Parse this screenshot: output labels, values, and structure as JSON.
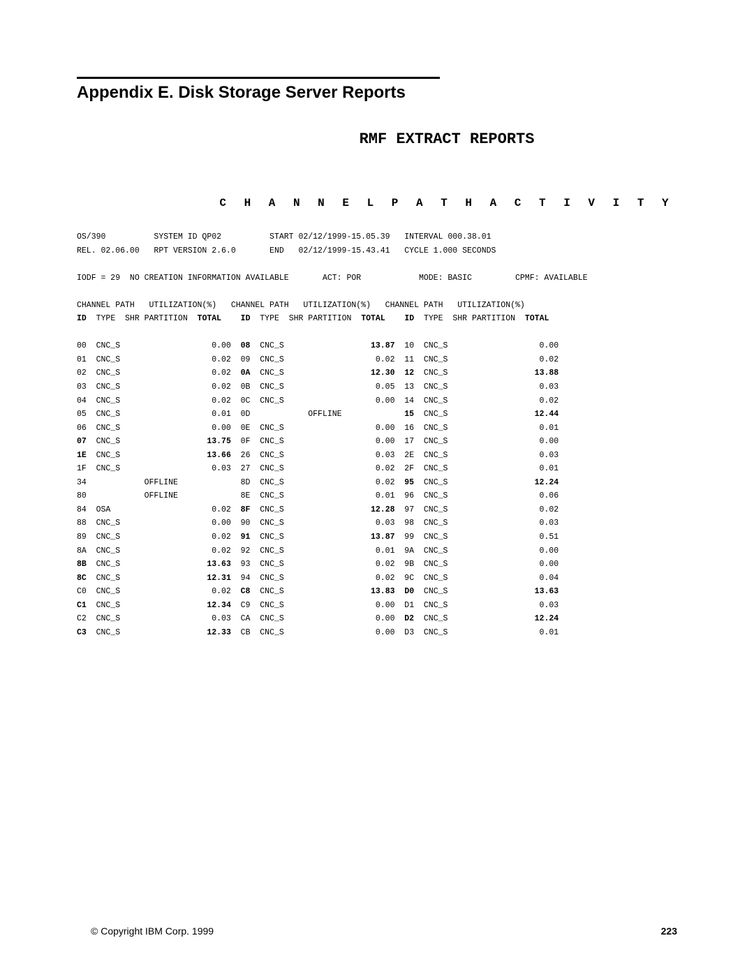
{
  "header": {
    "appendix_title": "Appendix E.  Disk Storage Server Reports",
    "report_title": "RMF EXTRACT REPORTS",
    "section_title": "C H A N N E L   P A T H   A C T I V I T Y"
  },
  "sysinfo": {
    "os_label": "OS/390",
    "system_id_label": "SYSTEM ID",
    "system_id": "QP02",
    "start_label": "START",
    "start": "02/12/1999-15.05.39",
    "interval_label": "INTERVAL",
    "interval": "000.38.01",
    "rel_label": "REL.",
    "rel": "02.06.00",
    "rpt_version_label": "RPT VERSION",
    "rpt_version": "2.6.0",
    "end_label": "END",
    "end": "02/12/1999-15.43.41",
    "cycle_label": "CYCLE",
    "cycle": "1.000 SECONDS",
    "iodf_label": "IODF =",
    "iodf": "29",
    "creation_info": "NO CREATION INFORMATION AVAILABLE",
    "act_label": "ACT:",
    "act": "POR",
    "mode_label": "MODE:",
    "mode": "BASIC",
    "cpmf_label": "CPMF:",
    "cpmf": "AVAILABLE"
  },
  "columns": {
    "group_label": "CHANNEL PATH",
    "util_label": "UTILIZATION(%)",
    "id": "ID",
    "type": "TYPE",
    "shr": "SHR",
    "partition": "PARTITION",
    "total": "TOTAL"
  },
  "rows": [
    {
      "c1": {
        "id": "00",
        "type": "CNC_S",
        "part": "",
        "total": "0.00",
        "bold": false
      },
      "c2": {
        "id": "08",
        "type": "CNC_S",
        "part": "",
        "total": "13.87",
        "bold": true
      },
      "c3": {
        "id": "10",
        "type": "CNC_S",
        "part": "",
        "total": "0.00",
        "bold": false
      }
    },
    {
      "c1": {
        "id": "01",
        "type": "CNC_S",
        "part": "",
        "total": "0.02",
        "bold": false
      },
      "c2": {
        "id": "09",
        "type": "CNC_S",
        "part": "",
        "total": "0.02",
        "bold": false
      },
      "c3": {
        "id": "11",
        "type": "CNC_S",
        "part": "",
        "total": "0.02",
        "bold": false
      }
    },
    {
      "c1": {
        "id": "02",
        "type": "CNC_S",
        "part": "",
        "total": "0.02",
        "bold": false
      },
      "c2": {
        "id": "0A",
        "type": "CNC_S",
        "part": "",
        "total": "12.30",
        "bold": true
      },
      "c3": {
        "id": "12",
        "type": "CNC_S",
        "part": "",
        "total": "13.88",
        "bold": true
      }
    },
    {
      "c1": {
        "id": "03",
        "type": "CNC_S",
        "part": "",
        "total": "0.02",
        "bold": false
      },
      "c2": {
        "id": "0B",
        "type": "CNC_S",
        "part": "",
        "total": "0.05",
        "bold": false
      },
      "c3": {
        "id": "13",
        "type": "CNC_S",
        "part": "",
        "total": "0.03",
        "bold": false
      }
    },
    {
      "c1": {
        "id": "04",
        "type": "CNC_S",
        "part": "",
        "total": "0.02",
        "bold": false
      },
      "c2": {
        "id": "0C",
        "type": "CNC_S",
        "part": "",
        "total": "0.00",
        "bold": false
      },
      "c3": {
        "id": "14",
        "type": "CNC_S",
        "part": "",
        "total": "0.02",
        "bold": false
      }
    },
    {
      "c1": {
        "id": "05",
        "type": "CNC_S",
        "part": "",
        "total": "0.01",
        "bold": false
      },
      "c2": {
        "id": "0D",
        "type": "",
        "part": "OFFLINE",
        "total": "",
        "bold": false
      },
      "c3": {
        "id": "15",
        "type": "CNC_S",
        "part": "",
        "total": "12.44",
        "bold": true
      }
    },
    {
      "c1": {
        "id": "06",
        "type": "CNC_S",
        "part": "",
        "total": "0.00",
        "bold": false
      },
      "c2": {
        "id": "0E",
        "type": "CNC_S",
        "part": "",
        "total": "0.00",
        "bold": false
      },
      "c3": {
        "id": "16",
        "type": "CNC_S",
        "part": "",
        "total": "0.01",
        "bold": false
      }
    },
    {
      "c1": {
        "id": "07",
        "type": "CNC_S",
        "part": "",
        "total": "13.75",
        "bold": true
      },
      "c2": {
        "id": "0F",
        "type": "CNC_S",
        "part": "",
        "total": "0.00",
        "bold": false
      },
      "c3": {
        "id": "17",
        "type": "CNC_S",
        "part": "",
        "total": "0.00",
        "bold": false
      }
    },
    {
      "c1": {
        "id": "1E",
        "type": "CNC_S",
        "part": "",
        "total": "13.66",
        "bold": true
      },
      "c2": {
        "id": "26",
        "type": "CNC_S",
        "part": "",
        "total": "0.03",
        "bold": false
      },
      "c3": {
        "id": "2E",
        "type": "CNC_S",
        "part": "",
        "total": "0.03",
        "bold": false
      }
    },
    {
      "c1": {
        "id": "1F",
        "type": "CNC_S",
        "part": "",
        "total": "0.03",
        "bold": false
      },
      "c2": {
        "id": "27",
        "type": "CNC_S",
        "part": "",
        "total": "0.02",
        "bold": false
      },
      "c3": {
        "id": "2F",
        "type": "CNC_S",
        "part": "",
        "total": "0.01",
        "bold": false
      }
    },
    {
      "c1": {
        "id": "34",
        "type": "",
        "part": "OFFLINE",
        "total": "",
        "bold": false
      },
      "c2": {
        "id": "8D",
        "type": "CNC_S",
        "part": "",
        "total": "0.02",
        "bold": false
      },
      "c3": {
        "id": "95",
        "type": "CNC_S",
        "part": "",
        "total": "12.24",
        "bold": true
      }
    },
    {
      "c1": {
        "id": "80",
        "type": "",
        "part": "OFFLINE",
        "total": "",
        "bold": false
      },
      "c2": {
        "id": "8E",
        "type": "CNC_S",
        "part": "",
        "total": "0.01",
        "bold": false
      },
      "c3": {
        "id": "96",
        "type": "CNC_S",
        "part": "",
        "total": "0.06",
        "bold": false
      }
    },
    {
      "c1": {
        "id": "84",
        "type": "OSA",
        "part": "",
        "total": "0.02",
        "bold": false
      },
      "c2": {
        "id": "8F",
        "type": "CNC_S",
        "part": "",
        "total": "12.28",
        "bold": true
      },
      "c3": {
        "id": "97",
        "type": "CNC_S",
        "part": "",
        "total": "0.02",
        "bold": false
      }
    },
    {
      "c1": {
        "id": "88",
        "type": "CNC_S",
        "part": "",
        "total": "0.00",
        "bold": false
      },
      "c2": {
        "id": "90",
        "type": "CNC_S",
        "part": "",
        "total": "0.03",
        "bold": false
      },
      "c3": {
        "id": "98",
        "type": "CNC_S",
        "part": "",
        "total": "0.03",
        "bold": false
      }
    },
    {
      "c1": {
        "id": "89",
        "type": "CNC_S",
        "part": "",
        "total": "0.02",
        "bold": false
      },
      "c2": {
        "id": "91",
        "type": "CNC_S",
        "part": "",
        "total": "13.87",
        "bold": true
      },
      "c3": {
        "id": "99",
        "type": "CNC_S",
        "part": "",
        "total": "0.51",
        "bold": false
      }
    },
    {
      "c1": {
        "id": "8A",
        "type": "CNC_S",
        "part": "",
        "total": "0.02",
        "bold": false
      },
      "c2": {
        "id": "92",
        "type": "CNC_S",
        "part": "",
        "total": "0.01",
        "bold": false
      },
      "c3": {
        "id": "9A",
        "type": "CNC_S",
        "part": "",
        "total": "0.00",
        "bold": false
      }
    },
    {
      "c1": {
        "id": "8B",
        "type": "CNC_S",
        "part": "",
        "total": "13.63",
        "bold": true
      },
      "c2": {
        "id": "93",
        "type": "CNC_S",
        "part": "",
        "total": "0.02",
        "bold": false
      },
      "c3": {
        "id": "9B",
        "type": "CNC_S",
        "part": "",
        "total": "0.00",
        "bold": false
      }
    },
    {
      "c1": {
        "id": "8C",
        "type": "CNC_S",
        "part": "",
        "total": "12.31",
        "bold": true
      },
      "c2": {
        "id": "94",
        "type": "CNC_S",
        "part": "",
        "total": "0.02",
        "bold": false
      },
      "c3": {
        "id": "9C",
        "type": "CNC_S",
        "part": "",
        "total": "0.04",
        "bold": false
      }
    },
    {
      "c1": {
        "id": "C0",
        "type": "CNC_S",
        "part": "",
        "total": "0.02",
        "bold": false
      },
      "c2": {
        "id": "C8",
        "type": "CNC_S",
        "part": "",
        "total": "13.83",
        "bold": true
      },
      "c3": {
        "id": "D0",
        "type": "CNC_S",
        "part": "",
        "total": "13.63",
        "bold": true
      }
    },
    {
      "c1": {
        "id": "C1",
        "type": "CNC_S",
        "part": "",
        "total": "12.34",
        "bold": true
      },
      "c2": {
        "id": "C9",
        "type": "CNC_S",
        "part": "",
        "total": "0.00",
        "bold": false
      },
      "c3": {
        "id": "D1",
        "type": "CNC_S",
        "part": "",
        "total": "0.03",
        "bold": false
      }
    },
    {
      "c1": {
        "id": "C2",
        "type": "CNC_S",
        "part": "",
        "total": "0.03",
        "bold": false
      },
      "c2": {
        "id": "CA",
        "type": "CNC_S",
        "part": "",
        "total": "0.00",
        "bold": false
      },
      "c3": {
        "id": "D2",
        "type": "CNC_S",
        "part": "",
        "total": "12.24",
        "bold": true
      }
    },
    {
      "c1": {
        "id": "C3",
        "type": "CNC_S",
        "part": "",
        "total": "12.33",
        "bold": true
      },
      "c2": {
        "id": "CB",
        "type": "CNC_S",
        "part": "",
        "total": "0.00",
        "bold": false
      },
      "c3": {
        "id": "D3",
        "type": "CNC_S",
        "part": "",
        "total": "0.01",
        "bold": false
      }
    }
  ],
  "footer": {
    "copyright": "© Copyright IBM Corp. 1999",
    "page": "223"
  }
}
